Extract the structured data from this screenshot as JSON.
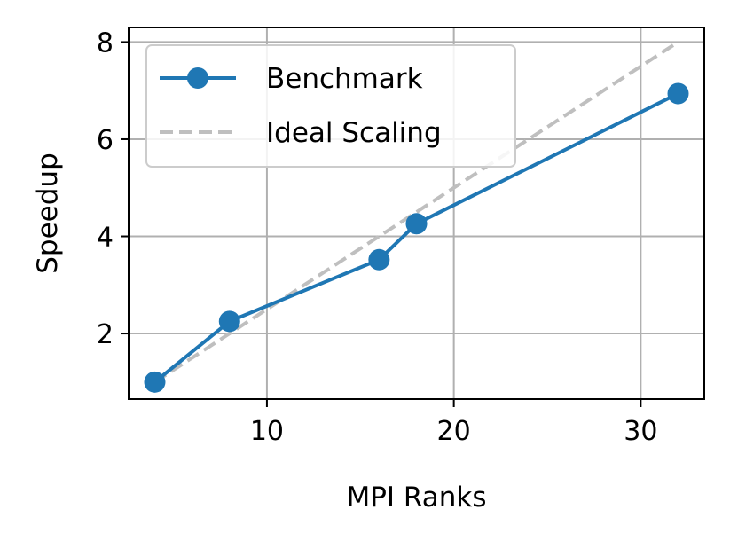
{
  "chart_data": {
    "type": "line",
    "xlabel": "MPI Ranks",
    "ylabel": "Speedup",
    "xlim": [
      2.6,
      33.4
    ],
    "ylim": [
      0.65,
      8.3
    ],
    "xticks": [
      10,
      20,
      30
    ],
    "yticks": [
      2,
      4,
      6,
      8
    ],
    "grid": true,
    "legend_position": "top-left",
    "series": [
      {
        "name": "Benchmark",
        "style": "solid-with-markers",
        "color": "#1f77b4",
        "x": [
          4,
          8,
          16,
          18,
          32
        ],
        "y": [
          1.0,
          2.25,
          3.52,
          4.26,
          6.94
        ]
      },
      {
        "name": "Ideal Scaling",
        "style": "dashed",
        "color": "#bfbfbf",
        "x": [
          4,
          32
        ],
        "y": [
          1,
          8
        ]
      }
    ]
  }
}
